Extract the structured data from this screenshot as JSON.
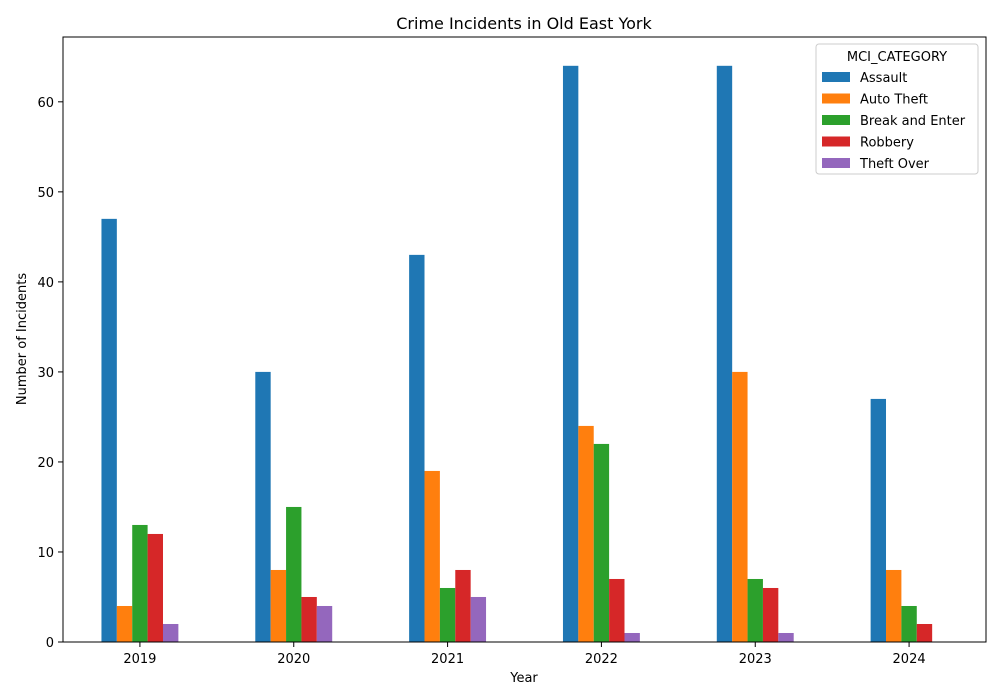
{
  "chart_data": {
    "type": "bar",
    "title": "Crime Incidents in Old East York",
    "xlabel": "Year",
    "ylabel": "Number of Incidents",
    "categories": [
      "2019",
      "2020",
      "2021",
      "2022",
      "2023",
      "2024"
    ],
    "ylim": [
      0,
      67.2
    ],
    "yticks": [
      0,
      10,
      20,
      30,
      40,
      50,
      60
    ],
    "legend_title": "MCI_CATEGORY",
    "legend_position": "top-right",
    "grid": false,
    "series": [
      {
        "name": "Assault",
        "color": "#1f77b4",
        "values": [
          47,
          30,
          43,
          64,
          64,
          27
        ]
      },
      {
        "name": "Auto Theft",
        "color": "#ff7f0e",
        "values": [
          4,
          8,
          19,
          24,
          30,
          8
        ]
      },
      {
        "name": "Break and Enter",
        "color": "#2ca02c",
        "values": [
          13,
          15,
          6,
          22,
          7,
          4
        ]
      },
      {
        "name": "Robbery",
        "color": "#d62728",
        "values": [
          12,
          5,
          8,
          7,
          6,
          2
        ]
      },
      {
        "name": "Theft Over",
        "color": "#9467bd",
        "values": [
          2,
          4,
          5,
          1,
          1,
          0
        ]
      }
    ]
  }
}
